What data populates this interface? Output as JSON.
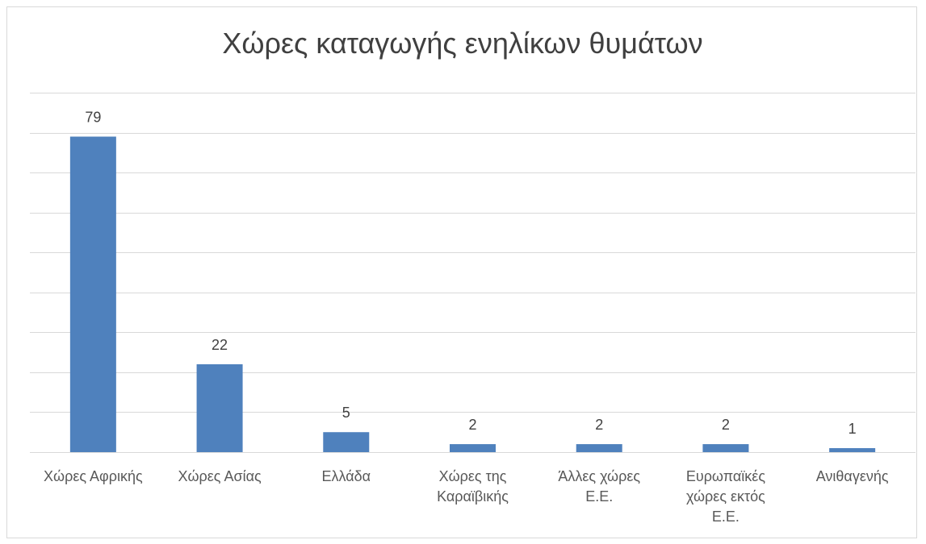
{
  "chart_data": {
    "type": "bar",
    "title": "Χώρες καταγωγής ενηλίκων θυμάτων",
    "xlabel": "",
    "ylabel": "",
    "categories": [
      [
        "Χώρες Αφρικής"
      ],
      [
        "Χώρες Ασίας"
      ],
      [
        "Ελλάδα"
      ],
      [
        "Χώρες της",
        "Καραϊβικής"
      ],
      [
        "Άλλες χώρες",
        "Ε.Ε."
      ],
      [
        "Ευρωπαϊκές",
        "χώρες εκτός",
        "Ε.Ε."
      ],
      [
        "Ανιθαγενής"
      ]
    ],
    "values": [
      79,
      22,
      5,
      2,
      2,
      2,
      1
    ],
    "ylim": [
      0,
      90
    ],
    "ytick_step": 10,
    "grid": true,
    "data_labels": true,
    "colors": {
      "bar": "#4f81bd",
      "grid": "#d9d9d9",
      "axis": "#d9d9d9",
      "title": "#404040",
      "label": "#595959"
    }
  }
}
